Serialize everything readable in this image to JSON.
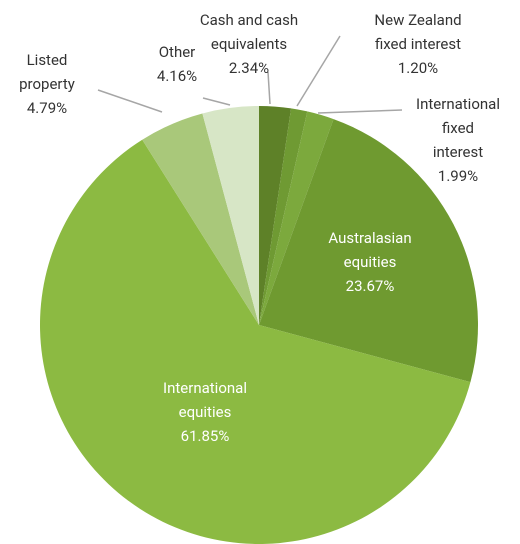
{
  "chart_data": {
    "type": "pie",
    "categories": [
      "Cash and cash\nequivalents",
      "New Zealand\nfixed interest",
      "International\nfixed interest",
      "Australasian\nequities",
      "International\nequities",
      "Listed\nproperty",
      "Other"
    ],
    "values": [
      2.34,
      1.2,
      1.99,
      23.67,
      61.85,
      4.79,
      4.16
    ],
    "value_labels": [
      "2.34%",
      "1.20%",
      "1.99%",
      "23.67%",
      "61.85%",
      "4.79%",
      "4.16%"
    ],
    "colors": [
      "#5e8128",
      "#6f9a33",
      "#7ca93d",
      "#6f9a30",
      "#8cba42",
      "#a9c87a",
      "#d7e6c6"
    ]
  }
}
